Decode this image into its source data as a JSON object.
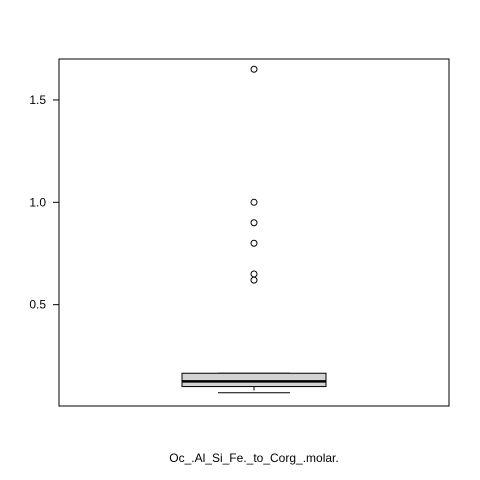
{
  "chart_data": {
    "type": "boxplot",
    "title": "",
    "xlabel": "Oc_.Al_Si_Fe._to_Corg_.molar.",
    "ylabel": "",
    "ylim": [
      0.005,
      1.7
    ],
    "yticks": [
      0.5,
      1.0,
      1.5
    ],
    "ytick_labels": [
      "0.5",
      "1.0",
      "1.5"
    ],
    "grid": false,
    "box": {
      "whisker_low": 0.07,
      "q1": 0.1,
      "median": 0.125,
      "q3": 0.165,
      "whisker_high": 0.165
    },
    "outliers": [
      1.65,
      1.0,
      0.9,
      0.8,
      0.65,
      0.62
    ],
    "colors": {
      "box_fill": "#d3d3d3",
      "line": "#000000"
    }
  }
}
